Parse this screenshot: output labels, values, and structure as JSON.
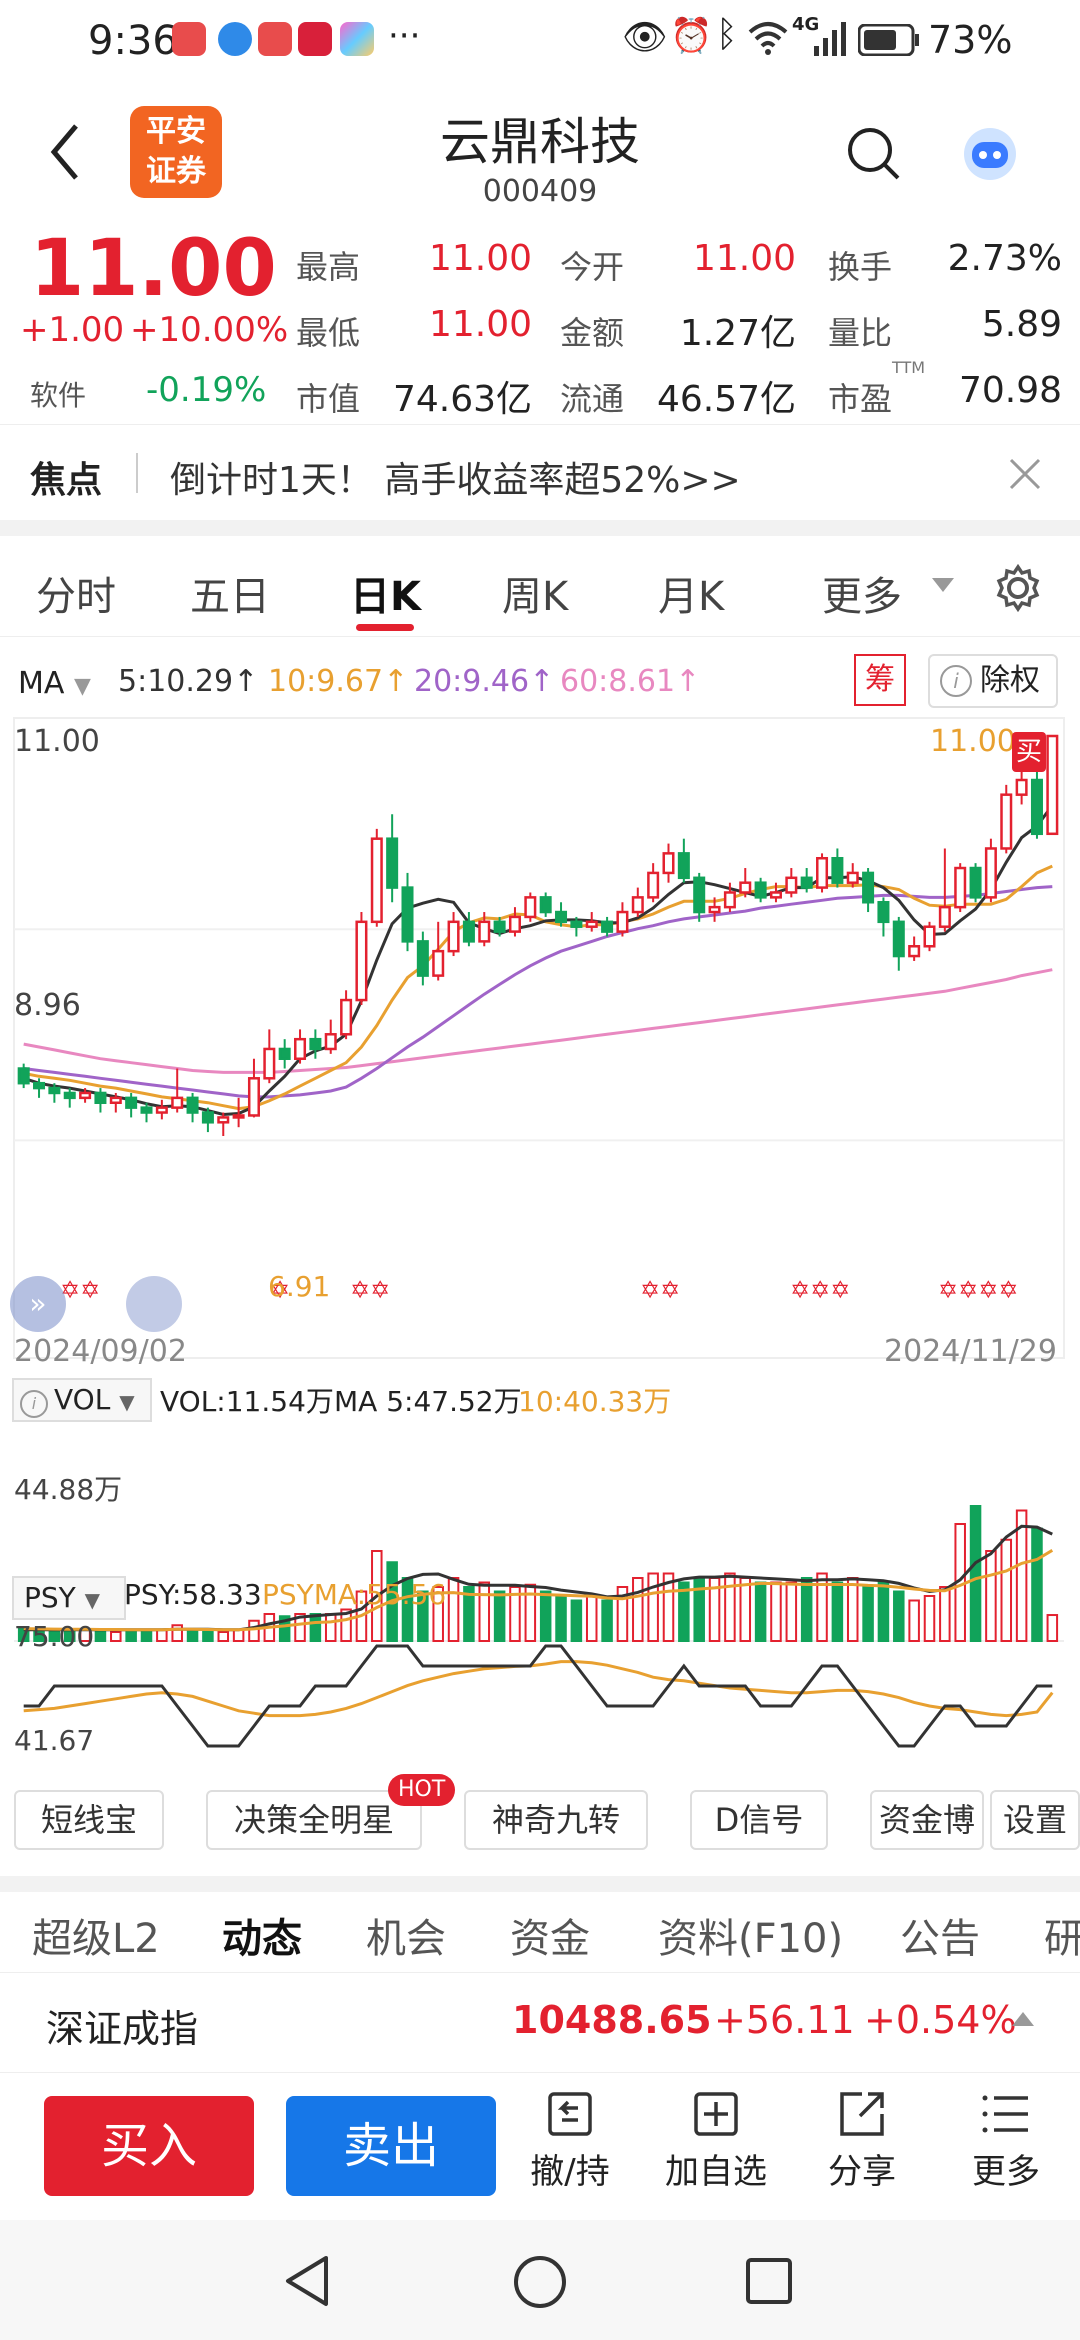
{
  "status_bar": {
    "time": "9:36",
    "more": "···",
    "network": "4G",
    "battery": "73%"
  },
  "header": {
    "back_icon": "chevron-left-icon",
    "logo_text_top": "平安",
    "logo_text_bottom": "证券",
    "stock_name": "云鼎科技",
    "stock_code": "000409",
    "search_icon": "search-icon",
    "assistant_icon": "robot-icon"
  },
  "quote": {
    "price": "11.00",
    "change": "+1.00",
    "change_pct": "+10.00%",
    "sector_label": "软件",
    "sector_change": "-0.19%",
    "fields": [
      {
        "label": "最高",
        "value": "11.00"
      },
      {
        "label": "今开",
        "value": "11.00"
      },
      {
        "label": "换手",
        "value": "2.73%"
      },
      {
        "label": "最低",
        "value": "11.00"
      },
      {
        "label": "金额",
        "value": "1.27亿"
      },
      {
        "label": "量比",
        "value": "5.89"
      },
      {
        "label": "市值",
        "value": "74.63亿"
      },
      {
        "label": "流通",
        "value": "46.57亿"
      },
      {
        "label": "市盈",
        "value": "70.98"
      }
    ],
    "pe_sup": "TTM"
  },
  "focus": {
    "label": "焦点",
    "text": "倒计时1天！ 高手收益率超52%>>"
  },
  "tabs": [
    "分时",
    "五日",
    "日K",
    "周K",
    "月K",
    "更多"
  ],
  "active_tab": "日K",
  "chart": {
    "ma_label": "MA",
    "ma5": "5:10.29↑",
    "ma10": "10:9.67↑",
    "ma20": "20:9.46↑",
    "ma60": "60:8.61↑",
    "chip_btn": "筹",
    "exright_btn": "除权",
    "y_top": "11.00",
    "y_mid": "8.96",
    "low_marker": "6.91",
    "high_marker": "11.00",
    "buy_tag": "买",
    "date_start": "2024/09/02",
    "date_end": "2024/11/29",
    "vol_label": "VOL",
    "vol_value": "VOL:11.54万",
    "vol_ma5": "MA 5:47.52万",
    "vol_ma10": "10:40.33万",
    "vol_axis": "44.88万",
    "psy_label": "PSY",
    "psy_value": "PSY:58.33",
    "psyma_value": "PSYMA:55.56",
    "psy_top": "75.00",
    "psy_bottom": "41.67",
    "colors": {
      "up": "#e3212f",
      "down": "#11a35a",
      "ma5": "#333333",
      "ma10": "#e8a030",
      "ma20": "#a064c8",
      "ma60": "#e888c0"
    }
  },
  "chart_data": {
    "type": "candlestick",
    "x_range": [
      "2024/09/02",
      "2024/11/29"
    ],
    "ylim": [
      6.91,
      11.0
    ],
    "candles": [
      [
        7.6,
        7.45,
        7.65,
        7.4
      ],
      [
        7.45,
        7.4,
        7.5,
        7.3
      ],
      [
        7.4,
        7.35,
        7.45,
        7.25
      ],
      [
        7.35,
        7.3,
        7.4,
        7.2
      ],
      [
        7.3,
        7.35,
        7.4,
        7.25
      ],
      [
        7.35,
        7.25,
        7.4,
        7.15
      ],
      [
        7.25,
        7.3,
        7.35,
        7.15
      ],
      [
        7.3,
        7.2,
        7.35,
        7.1
      ],
      [
        7.2,
        7.15,
        7.25,
        7.05
      ],
      [
        7.15,
        7.2,
        7.28,
        7.08
      ],
      [
        7.2,
        7.3,
        7.6,
        7.15
      ],
      [
        7.3,
        7.15,
        7.35,
        7.05
      ],
      [
        7.15,
        7.05,
        7.2,
        6.95
      ],
      [
        7.05,
        7.1,
        7.15,
        6.91
      ],
      [
        7.1,
        7.12,
        7.3,
        7.0
      ],
      [
        7.12,
        7.5,
        7.7,
        7.1
      ],
      [
        7.5,
        7.8,
        8.0,
        7.45
      ],
      [
        7.8,
        7.7,
        7.9,
        7.6
      ],
      [
        7.7,
        7.9,
        8.0,
        7.65
      ],
      [
        7.9,
        7.8,
        8.0,
        7.7
      ],
      [
        7.8,
        7.95,
        8.1,
        7.75
      ],
      [
        7.95,
        8.3,
        8.4,
        7.9
      ],
      [
        8.3,
        9.1,
        9.2,
        8.25
      ],
      [
        9.1,
        9.95,
        10.05,
        9.05
      ],
      [
        9.95,
        9.45,
        10.2,
        9.3
      ],
      [
        9.45,
        8.9,
        9.6,
        8.8
      ],
      [
        8.9,
        8.55,
        9.0,
        8.45
      ],
      [
        8.55,
        8.8,
        9.1,
        8.5
      ],
      [
        8.8,
        9.1,
        9.2,
        8.75
      ],
      [
        9.1,
        8.9,
        9.2,
        8.85
      ],
      [
        8.9,
        9.1,
        9.2,
        8.85
      ],
      [
        9.1,
        9.0,
        9.15,
        8.95
      ],
      [
        9.0,
        9.15,
        9.25,
        8.95
      ],
      [
        9.15,
        9.35,
        9.4,
        9.1
      ],
      [
        9.35,
        9.2,
        9.4,
        9.15
      ],
      [
        9.2,
        9.1,
        9.3,
        9.05
      ],
      [
        9.1,
        9.05,
        9.15,
        8.95
      ],
      [
        9.05,
        9.1,
        9.2,
        9.0
      ],
      [
        9.1,
        9.0,
        9.15,
        8.95
      ],
      [
        9.0,
        9.2,
        9.3,
        8.95
      ],
      [
        9.2,
        9.35,
        9.45,
        9.15
      ],
      [
        9.35,
        9.6,
        9.7,
        9.3
      ],
      [
        9.6,
        9.8,
        9.9,
        9.5
      ],
      [
        9.8,
        9.55,
        9.95,
        9.5
      ],
      [
        9.55,
        9.2,
        9.6,
        9.1
      ],
      [
        9.2,
        9.25,
        9.35,
        9.1
      ],
      [
        9.25,
        9.4,
        9.5,
        9.2
      ],
      [
        9.4,
        9.5,
        9.65,
        9.35
      ],
      [
        9.5,
        9.35,
        9.55,
        9.3
      ],
      [
        9.35,
        9.4,
        9.5,
        9.3
      ],
      [
        9.4,
        9.55,
        9.65,
        9.35
      ],
      [
        9.55,
        9.45,
        9.65,
        9.4
      ],
      [
        9.45,
        9.75,
        9.8,
        9.4
      ],
      [
        9.75,
        9.5,
        9.85,
        9.45
      ],
      [
        9.5,
        9.6,
        9.7,
        9.45
      ],
      [
        9.6,
        9.3,
        9.65,
        9.2
      ],
      [
        9.3,
        9.1,
        9.35,
        8.95
      ],
      [
        9.1,
        8.75,
        9.15,
        8.6
      ],
      [
        8.75,
        8.85,
        8.95,
        8.7
      ],
      [
        8.85,
        9.05,
        9.1,
        8.8
      ],
      [
        9.05,
        9.25,
        9.85,
        9.0
      ],
      [
        9.25,
        9.65,
        9.7,
        9.2
      ],
      [
        9.65,
        9.35,
        9.7,
        9.3
      ],
      [
        9.35,
        9.85,
        9.95,
        9.3
      ],
      [
        9.85,
        10.4,
        10.5,
        9.8
      ],
      [
        10.4,
        10.55,
        10.8,
        10.3
      ],
      [
        10.55,
        10.0,
        10.65,
        9.95
      ],
      [
        10.0,
        11.0,
        11.0,
        10.0
      ]
    ],
    "ma5": [
      7.5,
      7.45,
      7.42,
      7.4,
      7.37,
      7.34,
      7.31,
      7.28,
      7.24,
      7.21,
      7.22,
      7.21,
      7.17,
      7.13,
      7.14,
      7.21,
      7.37,
      7.52,
      7.7,
      7.78,
      7.83,
      7.95,
      8.29,
      8.71,
      9.08,
      9.24,
      9.29,
      9.33,
      9.3,
      9.09,
      9.03,
      8.98,
      9.03,
      9.06,
      9.11,
      9.12,
      9.12,
      9.11,
      9.09,
      9.09,
      9.14,
      9.24,
      9.38,
      9.5,
      9.51,
      9.48,
      9.44,
      9.4,
      9.36,
      9.4,
      9.45,
      9.45,
      9.55,
      9.55,
      9.56,
      9.52,
      9.45,
      9.32,
      9.12,
      8.97,
      8.98,
      9.11,
      9.23,
      9.43,
      9.71,
      9.96,
      10.08,
      10.29
    ],
    "ma10": [
      7.55,
      7.52,
      7.5,
      7.48,
      7.45,
      7.42,
      7.4,
      7.37,
      7.34,
      7.31,
      7.29,
      7.27,
      7.25,
      7.22,
      7.19,
      7.21,
      7.27,
      7.34,
      7.42,
      7.5,
      7.58,
      7.66,
      7.82,
      8.04,
      8.3,
      8.53,
      8.65,
      8.82,
      9.0,
      9.09,
      9.14,
      9.13,
      9.18,
      9.17,
      9.1,
      9.07,
      9.05,
      9.07,
      9.07,
      9.1,
      9.13,
      9.18,
      9.25,
      9.31,
      9.31,
      9.31,
      9.34,
      9.39,
      9.43,
      9.46,
      9.46,
      9.45,
      9.47,
      9.47,
      9.47,
      9.48,
      9.46,
      9.43,
      9.34,
      9.27,
      9.26,
      9.28,
      9.28,
      9.28,
      9.33,
      9.46,
      9.6,
      9.67
    ],
    "ma20": [
      7.6,
      7.58,
      7.56,
      7.54,
      7.52,
      7.5,
      7.48,
      7.46,
      7.44,
      7.42,
      7.4,
      7.38,
      7.36,
      7.34,
      7.32,
      7.31,
      7.31,
      7.32,
      7.33,
      7.35,
      7.37,
      7.41,
      7.5,
      7.6,
      7.71,
      7.82,
      7.92,
      8.03,
      8.14,
      8.25,
      8.36,
      8.46,
      8.56,
      8.65,
      8.73,
      8.8,
      8.85,
      8.9,
      8.95,
      8.99,
      9.03,
      9.06,
      9.1,
      9.13,
      9.15,
      9.17,
      9.19,
      9.21,
      9.24,
      9.26,
      9.28,
      9.3,
      9.32,
      9.34,
      9.35,
      9.36,
      9.37,
      9.37,
      9.36,
      9.35,
      9.35,
      9.36,
      9.37,
      9.39,
      9.41,
      9.43,
      9.45,
      9.46
    ],
    "ma60": [
      7.85,
      7.82,
      7.79,
      7.76,
      7.73,
      7.7,
      7.68,
      7.66,
      7.64,
      7.62,
      7.6,
      7.58,
      7.57,
      7.56,
      7.56,
      7.56,
      7.56,
      7.57,
      7.58,
      7.59,
      7.6,
      7.61,
      7.63,
      7.65,
      7.67,
      7.69,
      7.71,
      7.73,
      7.75,
      7.77,
      7.79,
      7.81,
      7.83,
      7.85,
      7.87,
      7.89,
      7.91,
      7.93,
      7.95,
      7.97,
      7.99,
      8.01,
      8.03,
      8.05,
      8.07,
      8.09,
      8.11,
      8.13,
      8.15,
      8.17,
      8.19,
      8.21,
      8.23,
      8.25,
      8.27,
      8.29,
      8.31,
      8.33,
      8.35,
      8.37,
      8.39,
      8.42,
      8.45,
      8.48,
      8.51,
      8.55,
      8.58,
      8.61
    ],
    "volume": [
      6,
      5,
      5,
      5,
      5,
      5,
      4,
      5,
      5,
      5,
      7,
      5,
      4,
      4,
      5,
      9,
      12,
      11,
      12,
      12,
      12,
      14,
      22,
      40,
      35,
      28,
      22,
      24,
      28,
      24,
      26,
      22,
      24,
      25,
      22,
      20,
      18,
      20,
      18,
      24,
      28,
      30,
      30,
      26,
      28,
      28,
      30,
      28,
      26,
      26,
      26,
      28,
      30,
      26,
      28,
      24,
      26,
      22,
      18,
      20,
      24,
      52,
      60,
      40,
      45,
      58,
      50,
      11.54
    ],
    "vol_ma5": [
      5,
      5,
      5,
      5,
      5,
      5,
      5,
      5,
      5,
      5,
      5.2,
      5.2,
      5.2,
      5,
      5,
      6,
      7.6,
      9,
      10.6,
      11.2,
      11.8,
      12.2,
      14.2,
      20,
      24.6,
      27.8,
      29.6,
      29.8,
      27.4,
      25.2,
      24.8,
      24.8,
      24.8,
      24.2,
      23.8,
      22.6,
      21.8,
      21,
      19.6,
      20,
      21.6,
      24,
      26,
      27.6,
      28.4,
      28.4,
      28.8,
      28.4,
      28,
      27.6,
      27.2,
      26.8,
      27.2,
      27.2,
      27.6,
      27.2,
      26.8,
      25.6,
      23.6,
      22,
      22.8,
      27.2,
      34.8,
      38.8,
      46.2,
      51,
      50.6,
      47.52
    ],
    "vol_ma10": [
      5.5,
      5.4,
      5.3,
      5.2,
      5.2,
      5.1,
      5.1,
      5,
      5,
      5,
      5.2,
      5.2,
      5.1,
      5,
      5,
      5.4,
      6.1,
      6.7,
      7.5,
      8.2,
      8.5,
      9.5,
      11.3,
      14.9,
      17.9,
      19.7,
      20.7,
      21.4,
      21.5,
      20.7,
      20.6,
      20.5,
      20.7,
      20.9,
      20.6,
      20.4,
      20.1,
      19.9,
      19.1,
      18.8,
      19.9,
      21.3,
      22.1,
      22.5,
      23.1,
      23.6,
      24.3,
      25,
      25.6,
      25.5,
      25.3,
      25.1,
      25.1,
      25.1,
      25.1,
      24.7,
      24.5,
      23.9,
      23.1,
      22.5,
      22.3,
      24.7,
      27.7,
      29.3,
      31.1,
      34.5,
      36.2,
      40.33
    ],
    "psy": [
      50,
      50,
      58.33,
      58.33,
      58.33,
      58.33,
      58.33,
      58.33,
      58.33,
      58.33,
      50,
      41.67,
      33.33,
      33.33,
      33.33,
      41.67,
      50,
      50,
      50,
      58.33,
      58.33,
      58.33,
      66.67,
      75,
      75,
      75,
      66.67,
      66.67,
      66.67,
      66.67,
      66.67,
      66.67,
      66.67,
      66.67,
      75,
      75,
      66.67,
      58.33,
      50,
      50,
      50,
      50,
      58.33,
      66.67,
      58.33,
      58.33,
      58.33,
      58.33,
      50,
      50,
      50,
      58.33,
      66.67,
      66.67,
      58.33,
      50,
      41.67,
      33.33,
      33.33,
      41.67,
      50,
      50,
      41.67,
      41.67,
      41.67,
      50,
      58.33,
      58.33
    ],
    "psyma": [
      48,
      48.5,
      49,
      50,
      51,
      52,
      53,
      54,
      55,
      55.5,
      55,
      54,
      52,
      50,
      48,
      47,
      46,
      46,
      46,
      46.5,
      47.5,
      49,
      51,
      53.5,
      56,
      58.5,
      60.5,
      62,
      63.5,
      64.5,
      65.5,
      66,
      66.5,
      66.7,
      67.5,
      68.5,
      68.5,
      68,
      67,
      65.5,
      64,
      62,
      61,
      60.5,
      59.5,
      58.5,
      57.5,
      57,
      56.5,
      56,
      55.5,
      55.5,
      56,
      56.5,
      56.5,
      56,
      55,
      53.5,
      51.5,
      50,
      49,
      48.5,
      47.5,
      46.5,
      46,
      46.5,
      47.5,
      55.56
    ],
    "chip_markers": [
      "✡✡",
      "✡",
      "✡✡",
      "✡✡",
      "✡✡✡",
      "✡✡✡✡",
      "✡✡✡✡"
    ]
  },
  "tool_buttons": [
    "短线宝",
    "决策全明星",
    "神奇九转",
    "D信号",
    "资金博",
    "设置"
  ],
  "hot_badge": "HOT",
  "sub_tabs": [
    "超级L2",
    "动态",
    "机会",
    "资金",
    "资料(F10)",
    "公告",
    "研"
  ],
  "active_sub_tab": "动态",
  "index": {
    "name": "深证成指",
    "value": "10488.65",
    "change": "+56.11",
    "change_pct": "+0.54%"
  },
  "bottom_bar": {
    "buy": "买入",
    "sell": "卖出",
    "actions": [
      {
        "label": "撤/持",
        "icon": "cancel-hold-icon"
      },
      {
        "label": "加自选",
        "icon": "add-watchlist-icon"
      },
      {
        "label": "分享",
        "icon": "share-icon"
      },
      {
        "label": "更多",
        "icon": "menu-icon"
      }
    ]
  }
}
